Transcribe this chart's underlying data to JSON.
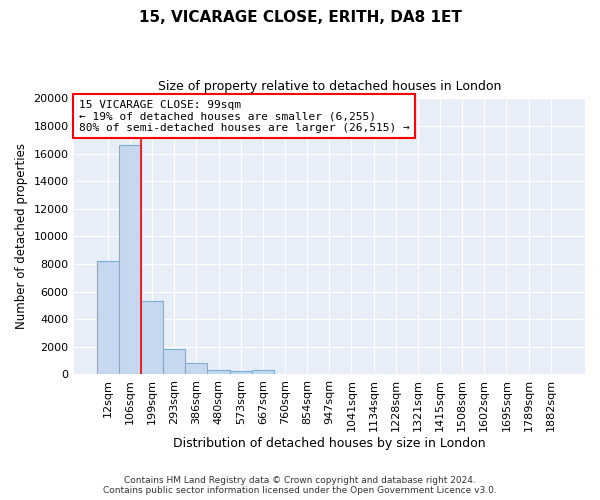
{
  "title": "15, VICARAGE CLOSE, ERITH, DA8 1ET",
  "subtitle": "Size of property relative to detached houses in London",
  "xlabel": "Distribution of detached houses by size in London",
  "ylabel": "Number of detached properties",
  "footer_line1": "Contains HM Land Registry data © Crown copyright and database right 2024.",
  "footer_line2": "Contains public sector information licensed under the Open Government Licence v3.0.",
  "bar_labels": [
    "12sqm",
    "106sqm",
    "199sqm",
    "293sqm",
    "386sqm",
    "480sqm",
    "573sqm",
    "667sqm",
    "760sqm",
    "854sqm",
    "947sqm",
    "1041sqm",
    "1134sqm",
    "1228sqm",
    "1321sqm",
    "1415sqm",
    "1508sqm",
    "1602sqm",
    "1695sqm",
    "1789sqm",
    "1882sqm"
  ],
  "bar_values": [
    8200,
    16600,
    5300,
    1850,
    800,
    350,
    230,
    300,
    50,
    0,
    0,
    0,
    0,
    0,
    0,
    0,
    0,
    0,
    0,
    0,
    0
  ],
  "bar_color": "#c5d8f0",
  "bar_edge_color": "#7aafd4",
  "bg_color": "#e8eef8",
  "grid_color": "#ffffff",
  "red_line_x": 1.5,
  "annotation_line1": "15 VICARAGE CLOSE: 99sqm",
  "annotation_line2": "← 19% of detached houses are smaller (6,255)",
  "annotation_line3": "80% of semi-detached houses are larger (26,515) →",
  "ylim": [
    0,
    20000
  ],
  "yticks": [
    0,
    2000,
    4000,
    6000,
    8000,
    10000,
    12000,
    14000,
    16000,
    18000,
    20000
  ]
}
